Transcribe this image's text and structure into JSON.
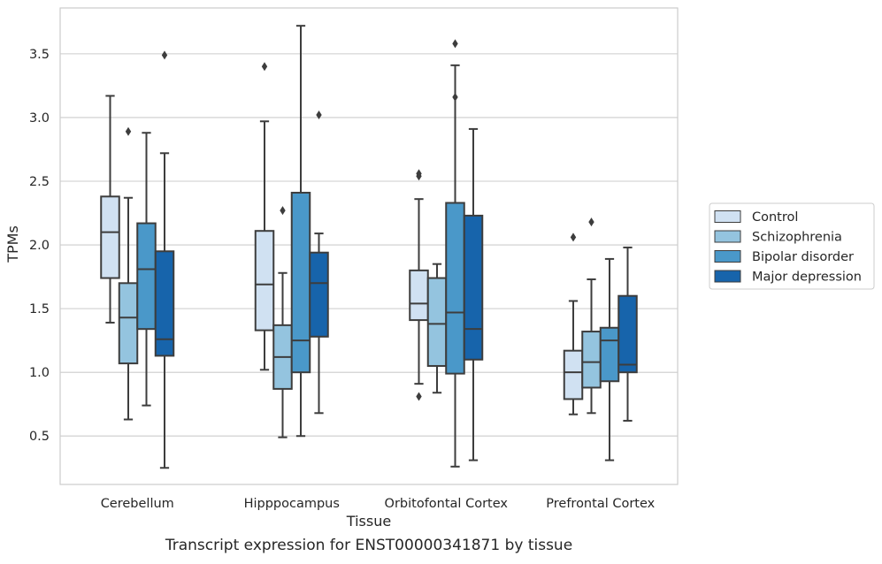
{
  "chart_data": {
    "type": "box",
    "title": "",
    "caption": "Transcript expression for ENST00000341871 by tissue",
    "xlabel": "Tissue",
    "ylabel": "TPMs",
    "ylim": [
      0.12,
      3.86
    ],
    "yticks": [
      0.5,
      1.0,
      1.5,
      2.0,
      2.5,
      3.0,
      3.5
    ],
    "ytick_labels": [
      "0.5",
      "1.0",
      "1.5",
      "2.0",
      "2.5",
      "3.0",
      "3.5"
    ],
    "grid": "horizontal",
    "legend_position": "right",
    "categories": [
      "Cerebellum",
      "Hipppocampus",
      "Orbitofontal Cortex",
      "Prefrontal Cortex"
    ],
    "series": [
      {
        "name": "Control",
        "color": "#d0e1f2",
        "boxes": [
          {
            "whisker_low": 1.39,
            "q1": 1.74,
            "median": 2.1,
            "q3": 2.38,
            "whisker_high": 3.17,
            "outliers": []
          },
          {
            "whisker_low": 1.02,
            "q1": 1.33,
            "median": 1.69,
            "q3": 2.11,
            "whisker_high": 2.97,
            "outliers": [
              3.4
            ]
          },
          {
            "whisker_low": 0.91,
            "q1": 1.41,
            "median": 1.54,
            "q3": 1.8,
            "whisker_high": 2.36,
            "outliers": [
              0.81,
              2.54,
              2.56
            ]
          },
          {
            "whisker_low": 0.67,
            "q1": 0.79,
            "median": 1.0,
            "q3": 1.17,
            "whisker_high": 1.56,
            "outliers": [
              2.06
            ]
          }
        ]
      },
      {
        "name": "Schizophrenia",
        "color": "#94c4df",
        "boxes": [
          {
            "whisker_low": 0.63,
            "q1": 1.07,
            "median": 1.43,
            "q3": 1.7,
            "whisker_high": 2.37,
            "outliers": [
              2.89
            ]
          },
          {
            "whisker_low": 0.49,
            "q1": 0.87,
            "median": 1.12,
            "q3": 1.37,
            "whisker_high": 1.78,
            "outliers": [
              2.27
            ]
          },
          {
            "whisker_low": 0.84,
            "q1": 1.05,
            "median": 1.38,
            "q3": 1.74,
            "whisker_high": 1.85,
            "outliers": []
          },
          {
            "whisker_low": 0.68,
            "q1": 0.88,
            "median": 1.08,
            "q3": 1.32,
            "whisker_high": 1.73,
            "outliers": [
              2.18
            ]
          }
        ]
      },
      {
        "name": "Bipolar disorder",
        "color": "#4a98c9",
        "boxes": [
          {
            "whisker_low": 0.74,
            "q1": 1.34,
            "median": 1.81,
            "q3": 2.17,
            "whisker_high": 2.88,
            "outliers": []
          },
          {
            "whisker_low": 0.5,
            "q1": 1.0,
            "median": 1.25,
            "q3": 2.41,
            "whisker_high": 3.72,
            "outliers": []
          },
          {
            "whisker_low": 0.26,
            "q1": 0.99,
            "median": 1.47,
            "q3": 2.33,
            "whisker_high": 3.41,
            "outliers": [
              3.16,
              3.58
            ]
          },
          {
            "whisker_low": 0.31,
            "q1": 0.93,
            "median": 1.25,
            "q3": 1.35,
            "whisker_high": 1.89,
            "outliers": []
          }
        ]
      },
      {
        "name": "Major depression",
        "color": "#1764ab",
        "boxes": [
          {
            "whisker_low": 0.25,
            "q1": 1.13,
            "median": 1.26,
            "q3": 1.95,
            "whisker_high": 2.72,
            "outliers": [
              3.49
            ]
          },
          {
            "whisker_low": 0.68,
            "q1": 1.28,
            "median": 1.7,
            "q3": 1.94,
            "whisker_high": 2.09,
            "outliers": [
              3.02
            ]
          },
          {
            "whisker_low": 0.31,
            "q1": 1.1,
            "median": 1.34,
            "q3": 2.23,
            "whisker_high": 2.91,
            "outliers": []
          },
          {
            "whisker_low": 0.62,
            "q1": 1.0,
            "median": 1.06,
            "q3": 1.6,
            "whisker_high": 1.98,
            "outliers": []
          }
        ]
      }
    ]
  }
}
